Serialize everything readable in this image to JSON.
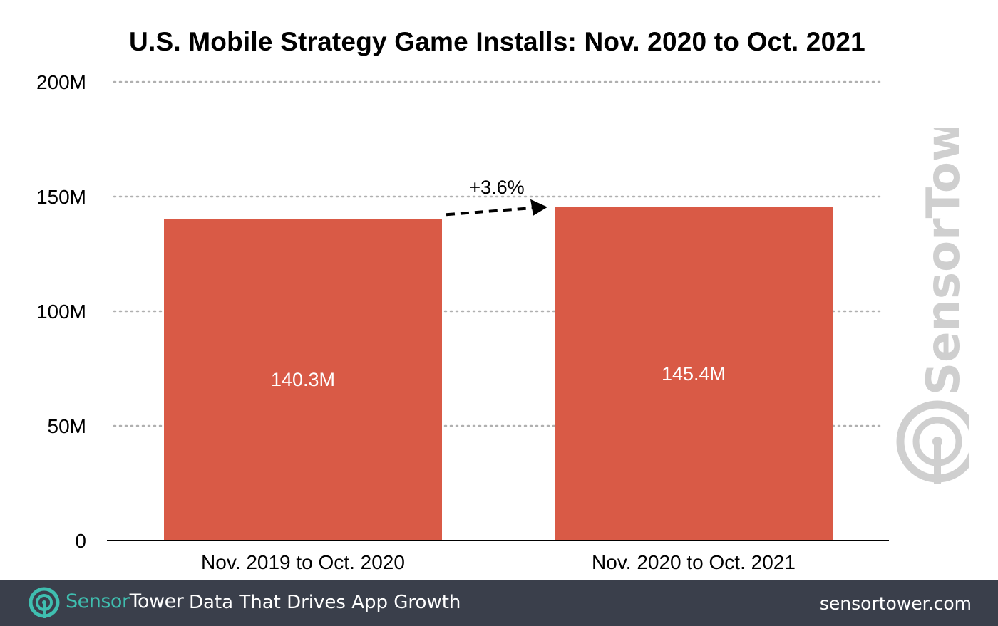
{
  "chart_data": {
    "type": "bar",
    "title": "U.S. Mobile Strategy Game Installs: Nov. 2020 to Oct. 2021",
    "xlabel": "",
    "ylabel": "",
    "categories": [
      "Nov. 2019 to Oct. 2020",
      "Nov. 2020 to Oct. 2021"
    ],
    "values": [
      140.3,
      145.4
    ],
    "value_labels": [
      "140.3M",
      "145.4M"
    ],
    "ylim": [
      0,
      200
    ],
    "yticks": [
      0,
      50,
      100,
      150,
      200
    ],
    "ytick_labels": [
      "0",
      "50M",
      "100M",
      "150M",
      "200M"
    ],
    "grid": "horizontal dotted",
    "legend": "none",
    "annotation": {
      "text": "+3.6%",
      "arrow": "dashed, from first bar to second bar"
    },
    "colors": {
      "bar": "#d95a46",
      "grid": "#b0b0b0",
      "axis": "#000000"
    }
  },
  "watermark": {
    "text": "SensorTower"
  },
  "footer": {
    "brand_part1": "Sensor",
    "brand_part2": "Tower",
    "tagline": "Data That Drives App Growth",
    "url": "sensortower.com",
    "background": "#3a3f4b",
    "brand_color": "#3fbfb0"
  }
}
